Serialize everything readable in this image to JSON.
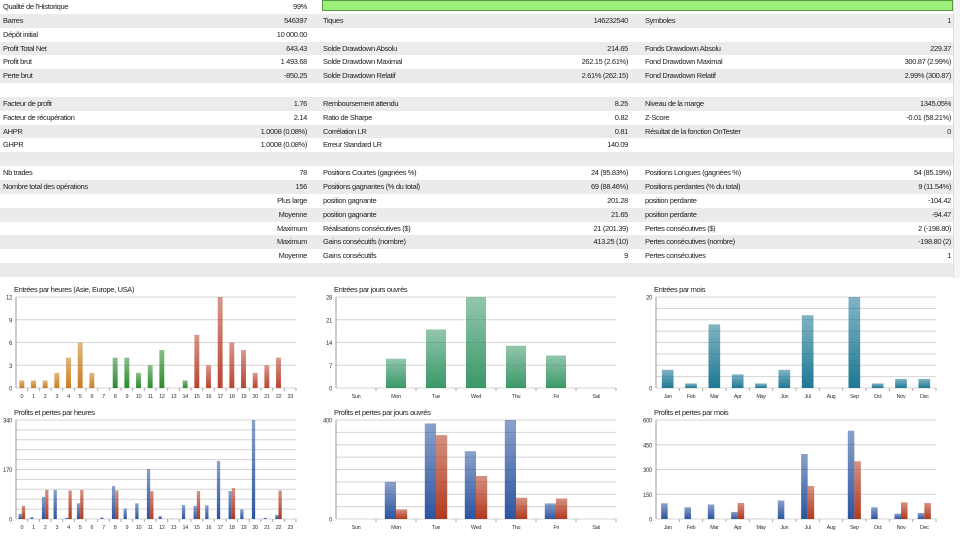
{
  "stats": {
    "quality_label": "Qualité de l'Historique",
    "quality_value": "99%",
    "quality_fraction": 0.99,
    "rows": [
      {
        "l1": "Qualité de l'Historique",
        "v1": "99%",
        "l2": "",
        "v2": "",
        "l3": "",
        "v3": ""
      },
      {
        "l1": "Barres",
        "v1": "546397",
        "l2": "Tiques",
        "v2": "146232540",
        "l3": "Symboles",
        "v3": "1"
      },
      {
        "l1": "Dépôt initial",
        "v1": "10 000.00",
        "l2": "",
        "v2": "",
        "l3": "",
        "v3": ""
      },
      {
        "l1": "Profit Total Net",
        "v1": "643.43",
        "l2": "Solde Drawdown Absolu",
        "v2": "214.65",
        "l3": "Fonds Drawdown Absolu",
        "v3": "229.37"
      },
      {
        "l1": "Profit brut",
        "v1": "1 493.68",
        "l2": "Solde Drawdown Maximal",
        "v2": "262.15 (2.61%)",
        "l3": "Fond Drawdown Maximal",
        "v3": "300.87 (2.99%)"
      },
      {
        "l1": "Perte brut",
        "v1": "-850.25",
        "l2": "Solde Drawdown Relatif",
        "v2": "2.61% (262.15)",
        "l3": "Fond Drawdown Relatif",
        "v3": "2.99% (300.87)"
      },
      {
        "l1": "",
        "v1": "",
        "l2": "",
        "v2": "",
        "l3": "",
        "v3": ""
      },
      {
        "l1": "Facteur de profit",
        "v1": "1.76",
        "l2": "Remboursement attendu",
        "v2": "8.25",
        "l3": "Niveau de la marge",
        "v3": "1345.05%"
      },
      {
        "l1": "Facteur de récupération",
        "v1": "2.14",
        "l2": "Ratio de Sharpe",
        "v2": "0.82",
        "l3": "Z-Score",
        "v3": "-0.01 (58.21%)"
      },
      {
        "l1": "AHPR",
        "v1": "1.0008 (0.08%)",
        "l2": "Corrélation LR",
        "v2": "0.81",
        "l3": "Résultat de la fonction OnTester",
        "v3": "0"
      },
      {
        "l1": "GHPR",
        "v1": "1.0008 (0.08%)",
        "l2": "Erreur Standard LR",
        "v2": "140.09",
        "l3": "",
        "v3": ""
      },
      {
        "l1": "",
        "v1": "",
        "l2": "",
        "v2": "",
        "l3": "",
        "v3": ""
      },
      {
        "l1": "Nb trades",
        "v1": "78",
        "l2": "Positions Courtes (gagnées %)",
        "v2": "24 (95.83%)",
        "l3": "Positions Longues (gagnées %)",
        "v3": "54 (85.19%)"
      },
      {
        "l1": "Nombre total des opérations",
        "v1": "156",
        "l2": "Positions gagnantes (% du total)",
        "v2": "69 (88.46%)",
        "l3": "Positions perdantes (% du total)",
        "v3": "9 (11.54%)"
      },
      {
        "l1": "",
        "v1": "Plus large",
        "l2": "position gagnante",
        "v2": "201.28",
        "l3": "position perdante",
        "v3": "-104.42"
      },
      {
        "l1": "",
        "v1": "Moyenne",
        "l2": "position gagnante",
        "v2": "21.65",
        "l3": "position perdante",
        "v3": "-94.47"
      },
      {
        "l1": "",
        "v1": "Maximum",
        "l2": "Réalisations consécutives ($)",
        "v2": "21 (201.39)",
        "l3": "Pertes consécutives ($)",
        "v3": "2 (-198.80)"
      },
      {
        "l1": "",
        "v1": "Maximum",
        "l2": "Gains consécutifs (nombre)",
        "v2": "413.25 (10)",
        "l3": "Pertes consécutives (nombre)",
        "v3": "-198.80 (2)"
      },
      {
        "l1": "",
        "v1": "Moyenne",
        "l2": "Gains consécutifs",
        "v2": "9",
        "l3": "Pertes consécutives",
        "v3": "1"
      },
      {
        "l1": "",
        "v1": "",
        "l2": "",
        "v2": "",
        "l3": "",
        "v3": ""
      }
    ]
  },
  "colors": {
    "asia": "#c87d1c",
    "europe": "#2a8a2a",
    "usa": "#b8432e",
    "weekday": "#3a9868",
    "month": "#1d7894",
    "profit": "#2c55a0",
    "loss": "#b2391e",
    "grid": "#d4d4d4",
    "progress": "#9cf07a"
  },
  "chart_data": [
    {
      "type": "bar",
      "title": "Entrées par heures (Asie, Europe, USA)",
      "ylim": [
        0,
        12
      ],
      "yticks": [
        "0",
        "3",
        "6",
        "9",
        "12"
      ],
      "grid": true,
      "categories": [
        "0",
        "1",
        "2",
        "3",
        "4",
        "5",
        "6",
        "7",
        "8",
        "9",
        "10",
        "11",
        "12",
        "13",
        "14",
        "15",
        "16",
        "17",
        "18",
        "19",
        "20",
        "21",
        "22",
        "23"
      ],
      "series": [
        {
          "values": [
            1,
            1,
            1,
            2,
            4,
            6,
            2,
            0,
            4,
            4,
            2,
            3,
            5,
            0,
            1,
            7,
            3,
            12,
            6,
            5,
            2,
            3,
            4,
            0
          ],
          "color_groups": [
            "asia",
            "asia",
            "asia",
            "asia",
            "asia",
            "asia",
            "asia",
            "europe",
            "europe",
            "europe",
            "europe",
            "europe",
            "europe",
            "europe",
            "europe",
            "usa",
            "usa",
            "usa",
            "usa",
            "usa",
            "usa",
            "usa",
            "usa",
            "usa"
          ]
        }
      ]
    },
    {
      "type": "bar",
      "title": "Entrées par jours ouvrés",
      "ylim": [
        0,
        28
      ],
      "yticks": [
        "0",
        "7",
        "14",
        "21",
        "28"
      ],
      "grid": true,
      "categories": [
        "Sun",
        "Mon",
        "Tue",
        "Wed",
        "Thu",
        "Fri",
        "Sat"
      ],
      "series": [
        {
          "values": [
            0,
            9,
            18,
            28,
            13,
            10,
            0
          ],
          "color": "weekday"
        }
      ]
    },
    {
      "type": "bar",
      "title": "Entrées par mois",
      "ylim": [
        0,
        20
      ],
      "yticks": [
        "0",
        "",
        "",
        "",
        "",
        "",
        "",
        "",
        "20"
      ],
      "grid": true,
      "categories": [
        "Jan",
        "Feb",
        "Mar",
        "Apr",
        "May",
        "Jun",
        "Jul",
        "Aug",
        "Sep",
        "Oct",
        "Nov",
        "Dec"
      ],
      "series": [
        {
          "values": [
            4,
            1,
            14,
            3,
            1,
            4,
            16,
            0,
            20,
            1,
            2,
            2
          ],
          "color": "month"
        }
      ]
    },
    {
      "type": "bar",
      "title": "Profits et pertes par heures",
      "ylim": [
        0,
        340
      ],
      "yticks": [
        "0",
        "",
        "",
        "",
        "",
        "170",
        "",
        "",
        "",
        "",
        "340"
      ],
      "grid": true,
      "categories": [
        "0",
        "1",
        "2",
        "3",
        "4",
        "5",
        "6",
        "7",
        "8",
        "9",
        "10",
        "11",
        "12",
        "13",
        "14",
        "15",
        "16",
        "17",
        "18",
        "19",
        "20",
        "21",
        "22",
        "23"
      ],
      "series": [
        {
          "color": "profit",
          "values": [
            18,
            6,
            76,
            100,
            4,
            54,
            0,
            5,
            113,
            36,
            54,
            172,
            10,
            1,
            48,
            45,
            47,
            199,
            96,
            33,
            340,
            4,
            14,
            0
          ]
        },
        {
          "color": "loss",
          "values": [
            45,
            0,
            100,
            0,
            98,
            100,
            0,
            0,
            98,
            0,
            0,
            96,
            0,
            0,
            0,
            96,
            0,
            0,
            106,
            0,
            0,
            0,
            98,
            0
          ]
        }
      ]
    },
    {
      "type": "bar",
      "title": "Profits et pertes par jours ouvrés",
      "ylim": [
        0,
        400
      ],
      "yticks": [
        "0",
        "",
        "",
        "",
        "",
        "",
        "",
        "",
        "400"
      ],
      "grid": true,
      "categories": [
        "Sun",
        "Mon",
        "Tue",
        "Wed",
        "Thu",
        "Fri",
        "Sat"
      ],
      "series": [
        {
          "color": "profit",
          "values": [
            0,
            150,
            386,
            274,
            400,
            63,
            0
          ]
        },
        {
          "color": "loss",
          "values": [
            0,
            39,
            339,
            174,
            86,
            83,
            0
          ]
        }
      ]
    },
    {
      "type": "bar",
      "title": "Profits et pertes par mois",
      "ylim": [
        0,
        600
      ],
      "yticks": [
        "0",
        "150",
        "300",
        "450",
        "600"
      ],
      "grid": true,
      "categories": [
        "Jan",
        "Feb",
        "Mar",
        "Apr",
        "May",
        "Jun",
        "Jul",
        "Aug",
        "Sep",
        "Oct",
        "Nov",
        "Dec"
      ],
      "series": [
        {
          "color": "profit",
          "values": [
            95,
            71,
            88,
            43,
            1,
            112,
            394,
            0,
            535,
            71,
            32,
            37
          ]
        },
        {
          "color": "loss",
          "values": [
            0,
            0,
            0,
            97,
            0,
            0,
            200,
            0,
            350,
            0,
            101,
            97
          ]
        }
      ]
    }
  ]
}
